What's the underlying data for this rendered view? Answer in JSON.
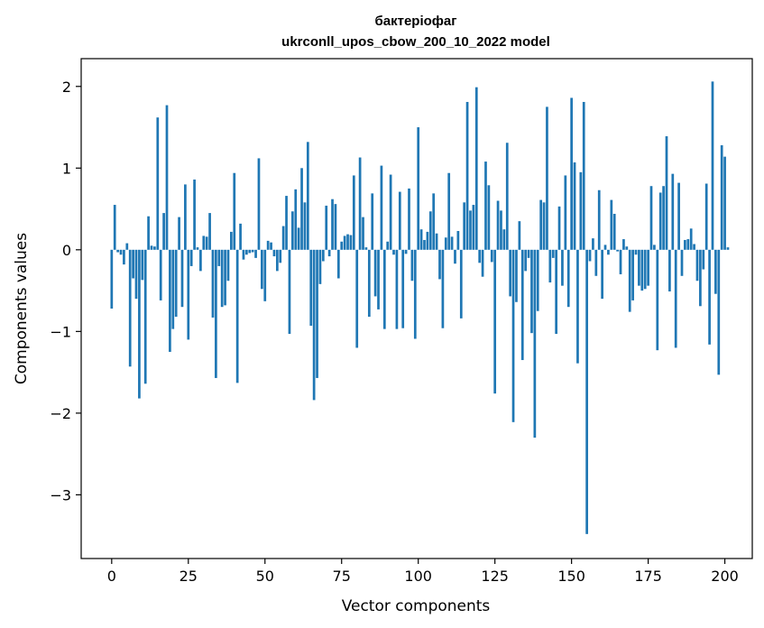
{
  "chart_data": {
    "type": "bar",
    "title_line1": "бактеріофаг",
    "title_line2": "ukrconll_upos_cbow_200_10_2022 model",
    "xlabel": "Vector components",
    "ylabel": "Components values",
    "xlim": [
      -9.95,
      208.95
    ],
    "ylim": [
      -3.78,
      2.34
    ],
    "xticks": [
      0,
      25,
      50,
      75,
      100,
      125,
      150,
      175,
      200
    ],
    "xtick_labels": [
      "0",
      "25",
      "50",
      "75",
      "100",
      "125",
      "150",
      "175",
      "200"
    ],
    "yticks": [
      2,
      1,
      0,
      -1,
      -2,
      -3
    ],
    "ytick_labels": [
      "2",
      "1",
      "0",
      "−1",
      "−2",
      "−3"
    ],
    "bar_color": "#1f77b4",
    "categories_start": 0,
    "values": [
      -0.72,
      0.55,
      -0.03,
      -0.06,
      -0.18,
      0.08,
      -1.43,
      -0.35,
      -0.6,
      -1.82,
      -0.37,
      -1.64,
      0.41,
      0.05,
      0.04,
      1.62,
      -0.62,
      0.45,
      1.77,
      -1.25,
      -0.97,
      -0.82,
      0.4,
      -0.7,
      0.8,
      -1.1,
      -0.2,
      0.86,
      0.03,
      -0.26,
      0.17,
      0.16,
      0.45,
      -0.83,
      -1.57,
      -0.2,
      -0.7,
      -0.68,
      -0.38,
      0.22,
      0.94,
      -1.63,
      0.32,
      -0.12,
      -0.06,
      -0.04,
      -0.03,
      -0.1,
      1.12,
      -0.48,
      -0.63,
      0.11,
      0.09,
      -0.08,
      -0.26,
      -0.16,
      0.29,
      0.66,
      -1.03,
      0.47,
      0.74,
      0.27,
      1.0,
      0.58,
      1.32,
      -0.93,
      -1.84,
      -1.57,
      -0.42,
      -0.14,
      0.54,
      -0.08,
      0.62,
      0.56,
      -0.35,
      0.1,
      0.17,
      0.19,
      0.18,
      0.91,
      -1.2,
      1.13,
      0.4,
      0.03,
      -0.82,
      0.69,
      -0.57,
      -0.73,
      1.03,
      -0.97,
      0.1,
      0.92,
      -0.06,
      -0.97,
      0.71,
      -0.96,
      -0.05,
      0.75,
      -0.38,
      -1.09,
      1.5,
      0.25,
      0.12,
      0.22,
      0.47,
      0.69,
      0.2,
      -0.36,
      -0.96,
      0.15,
      0.94,
      0.16,
      -0.17,
      0.23,
      -0.84,
      0.58,
      1.81,
      0.48,
      0.55,
      1.99,
      -0.16,
      -0.33,
      1.08,
      0.79,
      -0.15,
      -1.76,
      0.6,
      0.48,
      0.25,
      1.31,
      -0.57,
      -2.11,
      -0.64,
      0.35,
      -1.35,
      -0.26,
      -0.1,
      -1.02,
      -2.3,
      -0.75,
      0.61,
      0.58,
      1.75,
      -0.4,
      -0.1,
      -1.03,
      0.53,
      -0.44,
      0.91,
      -0.7,
      1.86,
      1.07,
      -1.39,
      0.95,
      1.81,
      -3.48,
      -0.14,
      0.14,
      -0.32,
      0.73,
      -0.6,
      0.06,
      -0.06,
      0.61,
      0.44,
      -0.02,
      -0.3,
      0.13,
      0.04,
      -0.76,
      -0.62,
      -0.06,
      -0.44,
      -0.5,
      -0.48,
      -0.44,
      0.78,
      0.06,
      -1.23,
      0.7,
      0.78,
      1.39,
      -0.51,
      0.93,
      -1.2,
      0.82,
      -0.32,
      0.12,
      0.13,
      0.26,
      0.07,
      -0.38,
      -0.69,
      -0.24,
      0.81,
      -1.16,
      2.06,
      -0.54,
      -1.53,
      1.28,
      1.14,
      0.03
    ]
  }
}
